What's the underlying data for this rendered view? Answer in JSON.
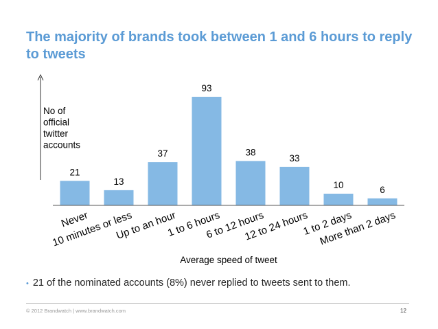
{
  "slide": {
    "title": "The majority of brands took between 1 and 6 hours to reply to tweets",
    "bullet": "21 of the nominated accounts (8%) never replied to tweets sent to them.",
    "footer": "© 2012 Brandwatch  |  www.brandwatch.com",
    "page_number": "12"
  },
  "colors": {
    "bar": "#85b9e4",
    "title": "#5b9bd5",
    "axis": "#555555"
  },
  "chart_data": {
    "type": "bar",
    "categories": [
      "Never",
      "10 minutes or less",
      "Up to an hour",
      "1 to 6 hours",
      "6 to 12 hours",
      "12 to 24 hours",
      "1 to 2 days",
      "More than 2 days"
    ],
    "values": [
      21,
      13,
      37,
      93,
      38,
      33,
      10,
      6
    ],
    "ylabel": "No of official twitter accounts",
    "ylabel_lines": [
      "No of",
      "official",
      "twitter",
      "accounts"
    ],
    "xlabel": "Average speed of tweet",
    "ylim": [
      0,
      100
    ],
    "grid": false,
    "legend": "none"
  }
}
